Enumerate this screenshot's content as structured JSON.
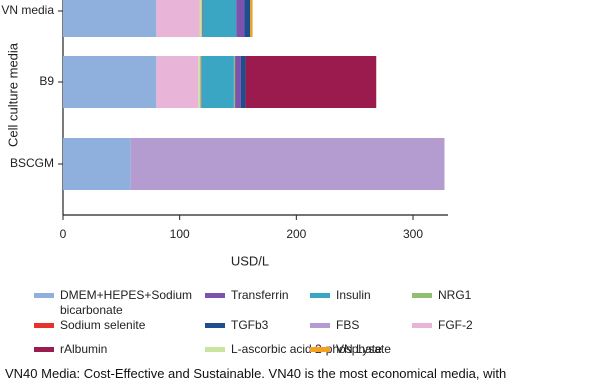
{
  "chart_data": {
    "type": "bar",
    "orientation": "horizontal",
    "stacked": true,
    "categories": [
      "VN media",
      "B9",
      "BSCGM"
    ],
    "xlabel": "USD/L",
    "ylabel": "Cell culture media",
    "xlim": [
      0,
      330
    ],
    "xticks": [
      0,
      100,
      200,
      300
    ],
    "series": [
      {
        "name": "DMEM+HEPES+Sodium bicarbonate",
        "color": "#8fb0dc",
        "values": [
          80,
          80,
          58
        ]
      },
      {
        "name": "FGF-2",
        "color": "#e8b4d8",
        "values": [
          37,
          36,
          0
        ]
      },
      {
        "name": "L-ascorbic acid 2-phosphate",
        "color": "#c8e6a0",
        "values": [
          2,
          2,
          0
        ]
      },
      {
        "name": "Sodium selenite",
        "color": "#e8312a",
        "values": [
          0.5,
          0.5,
          0
        ]
      },
      {
        "name": "Insulin",
        "color": "#3aa6c4",
        "values": [
          29,
          28,
          0
        ]
      },
      {
        "name": "NRG1",
        "color": "#8fbf6f",
        "values": [
          0,
          1,
          0
        ]
      },
      {
        "name": "Transferrin",
        "color": "#7b52ae",
        "values": [
          7,
          5,
          0
        ]
      },
      {
        "name": "TGFb3",
        "color": "#1f4e8c",
        "values": [
          5,
          4,
          0
        ]
      },
      {
        "name": "rAlbumin",
        "color": "#9b1b4e",
        "values": [
          0,
          112,
          0
        ]
      },
      {
        "name": "VN Lysate",
        "color": "#f4a020",
        "values": [
          2,
          0,
          0
        ]
      },
      {
        "name": "FBS",
        "color": "#b49cd0",
        "values": [
          0,
          0,
          269
        ]
      }
    ]
  },
  "caption": "VN40 Media: Cost-Effective and Sustainable. VN40 is the most economical media, with"
}
